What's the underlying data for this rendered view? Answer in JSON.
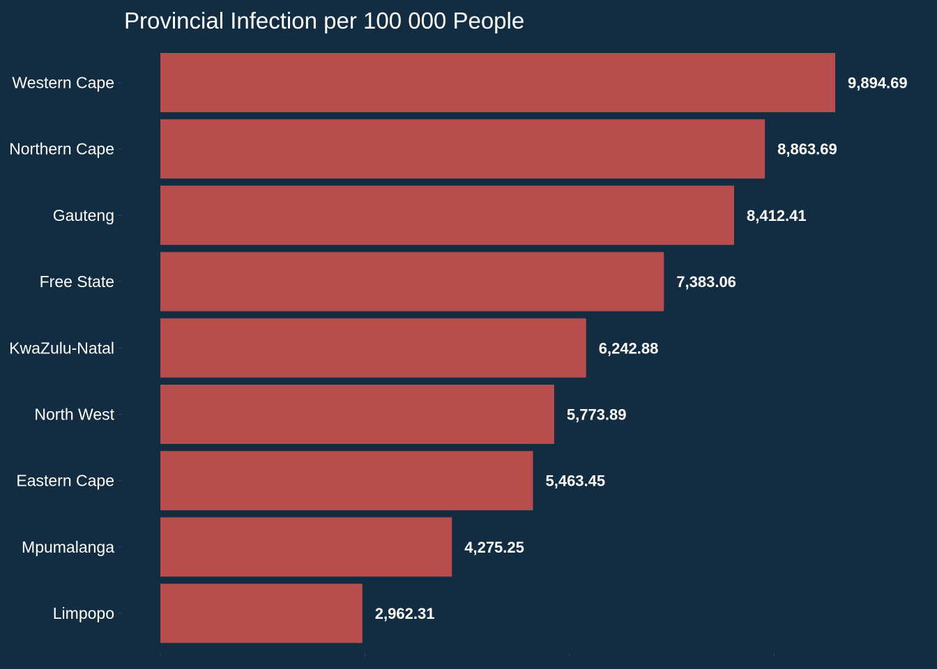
{
  "chart_data": {
    "type": "bar",
    "orientation": "horizontal",
    "title": "Provincial Infection per 100 000 People",
    "xlabel": "",
    "ylabel": "",
    "categories": [
      "Western Cape",
      "Northern Cape",
      "Gauteng",
      "Free State",
      "KwaZulu-Natal",
      "North West",
      "Eastern Cape",
      "Mpumalanga",
      "Limpopo"
    ],
    "values": [
      9894.69,
      8863.69,
      8412.41,
      7383.06,
      6242.88,
      5773.89,
      5463.45,
      4275.25,
      2962.31
    ],
    "value_labels": [
      "9,894.69",
      "8,863.69",
      "8,412.41",
      "7,383.06",
      "6,242.88",
      "5,773.89",
      "5,463.45",
      "4,275.25",
      "2,962.31"
    ],
    "xlim": [
      0,
      10000
    ],
    "grid": false,
    "legend": "none",
    "colors": {
      "background": "#122d42",
      "bar": "#b74d4d",
      "text": "#ffffff",
      "tick": "#2a4a60"
    }
  }
}
